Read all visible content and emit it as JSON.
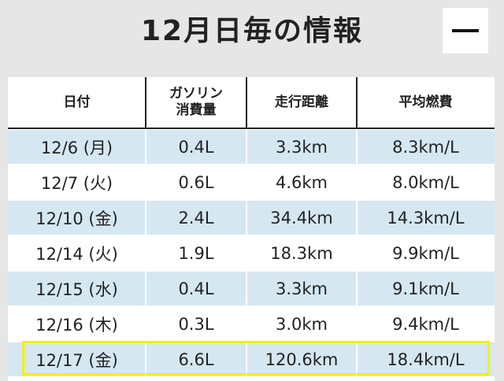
{
  "header": {
    "title": "12月日毎の情報"
  },
  "table": {
    "columns": [
      [
        "日付"
      ],
      [
        "ガソリン",
        "消費量"
      ],
      [
        "走行距離"
      ],
      [
        "平均燃費"
      ]
    ],
    "rows": [
      [
        "12/6 (月)",
        "0.4L",
        "3.3km",
        "8.3km/L"
      ],
      [
        "12/7 (火)",
        "0.6L",
        "4.6km",
        "8.0km/L"
      ],
      [
        "12/10 (金)",
        "2.4L",
        "34.4km",
        "14.3km/L"
      ],
      [
        "12/14 (火)",
        "1.9L",
        "18.3km",
        "9.9km/L"
      ],
      [
        "12/15 (水)",
        "0.4L",
        "3.3km",
        "9.1km/L"
      ],
      [
        "12/16 (木)",
        "0.3L",
        "3.0km",
        "9.4km/L"
      ],
      [
        "12/17 (金)",
        "6.6L",
        "120.6km",
        "18.4km/L"
      ]
    ]
  }
}
